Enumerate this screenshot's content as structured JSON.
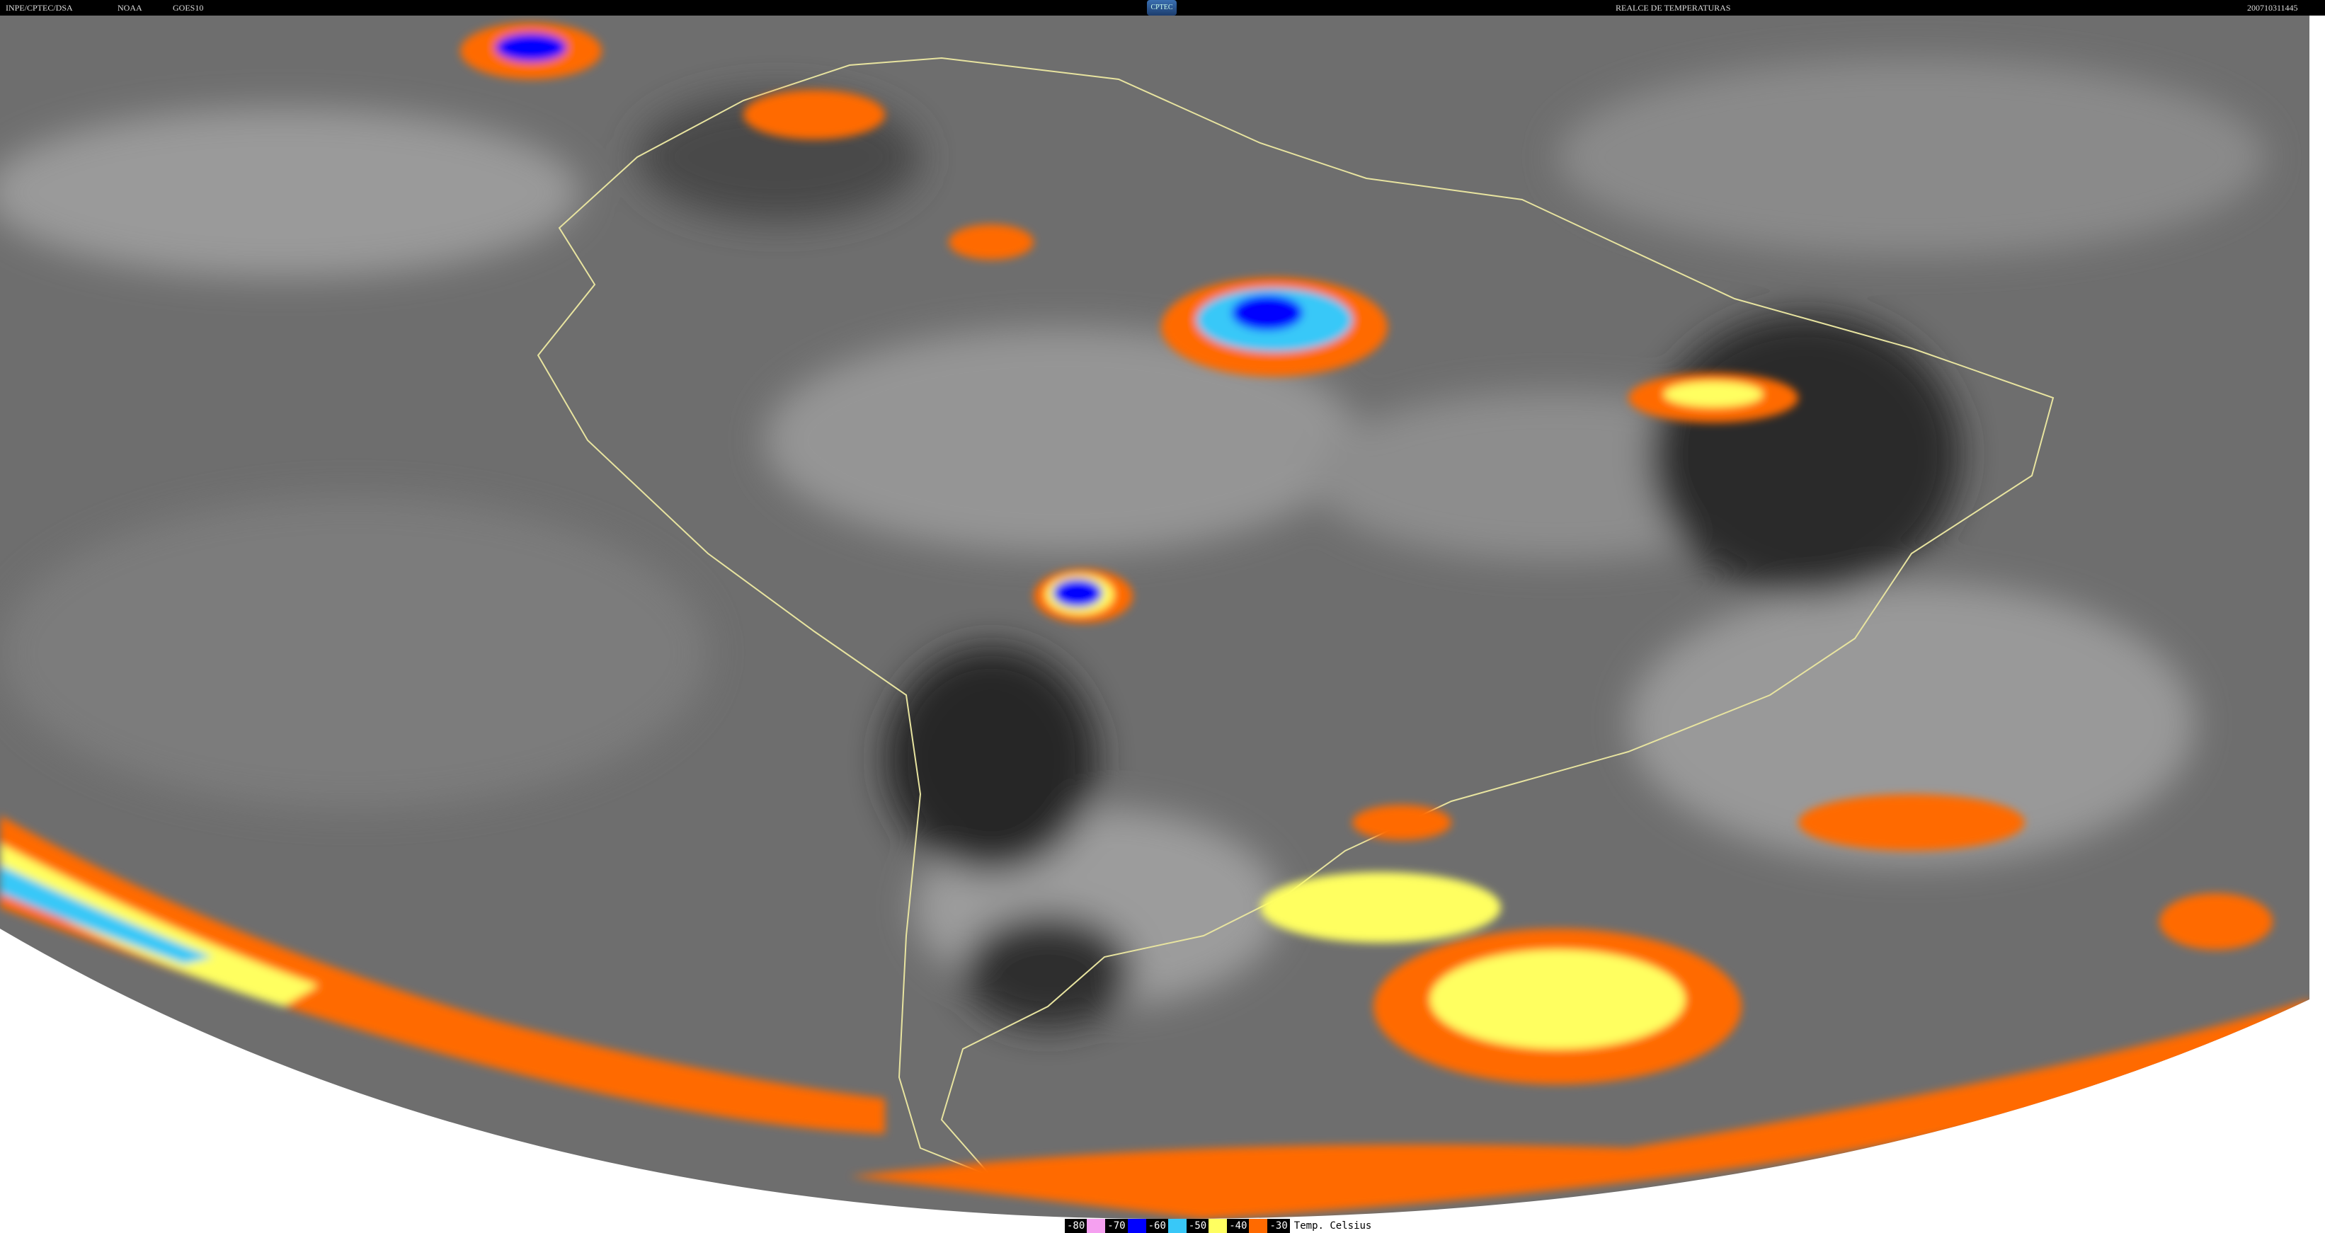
{
  "header": {
    "source": "INPE/CPTEC/DSA",
    "agency": "NOAA",
    "satellite": "GOES10",
    "logo_text": "CPTEC",
    "product": "REALCE DE TEMPERATURAS",
    "timestamp": "200710311445"
  },
  "legend": {
    "items": [
      {
        "label": "-80",
        "color": "#f5a0f0"
      },
      {
        "label": "-70",
        "color": "#0000ff"
      },
      {
        "label": "-60",
        "color": "#38c8f8"
      },
      {
        "label": "-50",
        "color": "#ffff60"
      },
      {
        "label": "-40",
        "color": "#ff6a00"
      },
      {
        "label": "-30",
        "color": ""
      }
    ],
    "unit": "Temp. Celsius"
  }
}
